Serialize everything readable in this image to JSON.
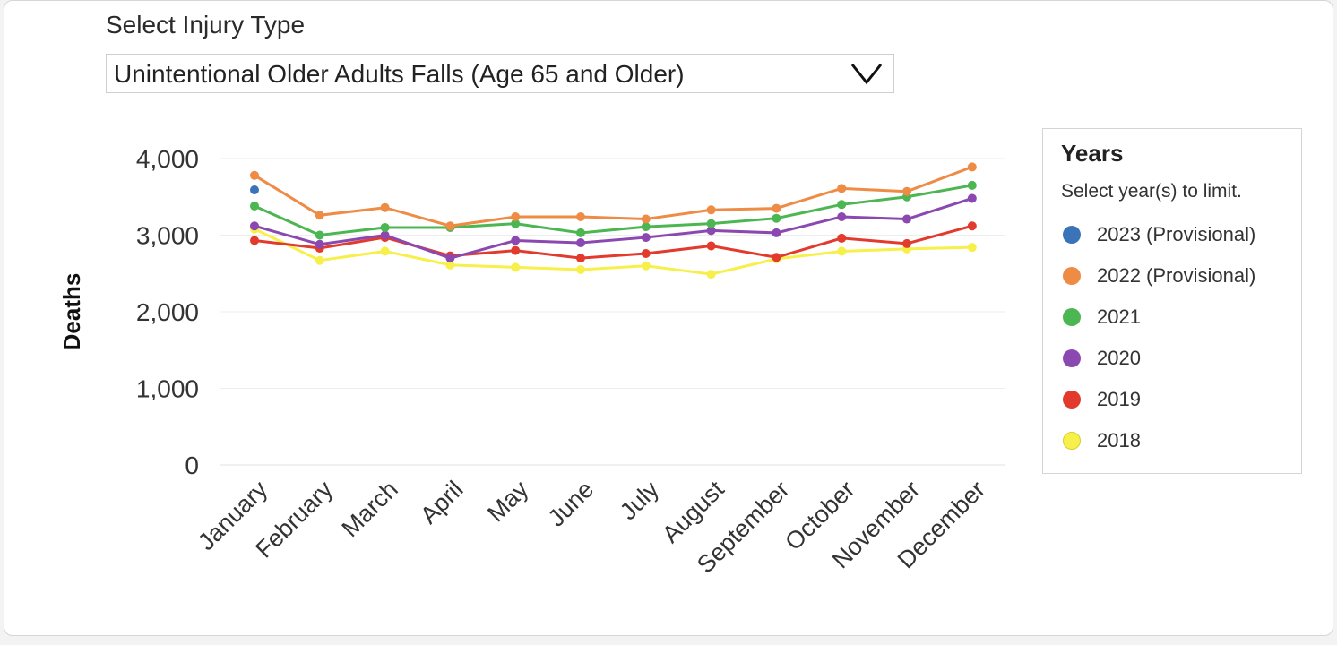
{
  "filter": {
    "label": "Select Injury Type",
    "value": "Unintentional Older Adults Falls (Age 65 and Older)"
  },
  "legend": {
    "title": "Years",
    "subtitle": "Select year(s) to limit."
  },
  "chart_data": {
    "type": "line",
    "title": "",
    "xlabel": "",
    "ylabel": "Deaths",
    "ylim": [
      0,
      4000
    ],
    "yticks": [
      0,
      1000,
      2000,
      3000,
      4000
    ],
    "ytick_labels": [
      "0",
      "1,000",
      "2,000",
      "3,000",
      "4,000"
    ],
    "grid": true,
    "legend_position": "right",
    "categories": [
      "January",
      "February",
      "March",
      "April",
      "May",
      "June",
      "July",
      "August",
      "September",
      "October",
      "November",
      "December"
    ],
    "series": [
      {
        "name": "2023 (Provisional)",
        "color": "#3b73b9",
        "values": [
          3590,
          null,
          null,
          null,
          null,
          null,
          null,
          null,
          null,
          null,
          null,
          null
        ]
      },
      {
        "name": "2022 (Provisional)",
        "color": "#ee8b45",
        "values": [
          3780,
          3260,
          3360,
          3120,
          3240,
          3240,
          3210,
          3330,
          3350,
          3610,
          3570,
          3890
        ]
      },
      {
        "name": "2021",
        "color": "#4cb652",
        "values": [
          3380,
          3000,
          3100,
          3100,
          3150,
          3030,
          3110,
          3150,
          3220,
          3400,
          3500,
          3650
        ]
      },
      {
        "name": "2020",
        "color": "#8a48b0",
        "values": [
          3120,
          2880,
          3000,
          2700,
          2930,
          2900,
          2970,
          3060,
          3030,
          3240,
          3210,
          3480
        ]
      },
      {
        "name": "2019",
        "color": "#e23b2e",
        "values": [
          2930,
          2830,
          2970,
          2730,
          2800,
          2700,
          2760,
          2860,
          2710,
          2960,
          2890,
          3120
        ]
      },
      {
        "name": "2018",
        "color": "#f7ef4a",
        "values": [
          3080,
          2670,
          2790,
          2610,
          2580,
          2550,
          2600,
          2490,
          2690,
          2790,
          2820,
          2840
        ]
      }
    ]
  }
}
